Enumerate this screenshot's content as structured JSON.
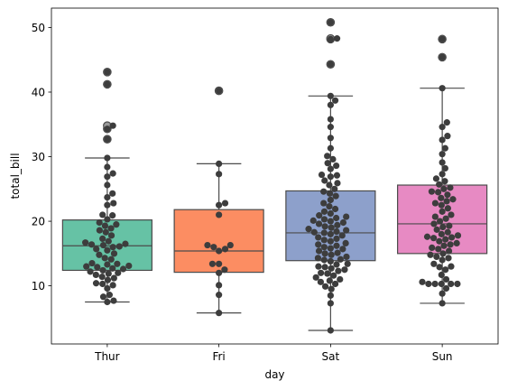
{
  "chart_data": {
    "type": "box",
    "overlay": "swarm",
    "title": "",
    "xlabel": "day",
    "ylabel": "total_bill",
    "ylim": [
      1.0,
      53.0
    ],
    "y_ticks": [
      10,
      20,
      30,
      40,
      50
    ],
    "grid": false,
    "legend": "none",
    "categories": [
      "Thur",
      "Fri",
      "Sat",
      "Sun"
    ],
    "colors": [
      "#66c2a5",
      "#fc8d62",
      "#8da0cb",
      "#e78ac3"
    ],
    "box_stats": [
      {
        "whisker_low": 7.5,
        "q1": 12.4,
        "median": 16.2,
        "q3": 20.2,
        "whisker_high": 29.8,
        "outliers": [
          32.7,
          34.3,
          34.8,
          41.2,
          43.1
        ]
      },
      {
        "whisker_low": 5.8,
        "q1": 12.1,
        "median": 15.4,
        "q3": 21.8,
        "whisker_high": 28.9,
        "outliers": [
          40.2
        ]
      },
      {
        "whisker_low": 3.1,
        "q1": 13.9,
        "median": 18.2,
        "q3": 24.7,
        "whisker_high": 39.4,
        "outliers": [
          44.3,
          48.2,
          48.3,
          50.8
        ]
      },
      {
        "whisker_low": 7.3,
        "q1": 15.0,
        "median": 19.6,
        "q3": 25.6,
        "whisker_high": 40.6,
        "outliers": [
          45.4,
          48.2
        ]
      }
    ],
    "points": [
      [
        7.5,
        7.7,
        8.3,
        8.6,
        9.6,
        10.1,
        10.3,
        10.4,
        10.9,
        11.2,
        11.4,
        11.7,
        11.9,
        12.0,
        12.2,
        12.4,
        12.6,
        12.7,
        12.9,
        13.0,
        13.1,
        13.3,
        13.4,
        13.5,
        14.1,
        14.3,
        14.8,
        15.0,
        15.5,
        15.7,
        16.0,
        16.1,
        16.3,
        16.4,
        16.5,
        16.7,
        16.9,
        17.3,
        17.8,
        18.3,
        18.6,
        18.9,
        19.3,
        19.5,
        19.8,
        20.3,
        20.9,
        21.0,
        22.5,
        22.8,
        23.7,
        24.3,
        25.6,
        26.9,
        27.4,
        28.4,
        29.8,
        32.7,
        34.3,
        34.8,
        41.2,
        43.1
      ],
      [
        5.8,
        8.6,
        10.1,
        12.0,
        12.5,
        13.4,
        13.4,
        15.4,
        15.7,
        16.0,
        16.3,
        16.3,
        21.0,
        22.5,
        22.8,
        27.3,
        28.9,
        40.2
      ],
      [
        3.1,
        7.3,
        8.5,
        9.5,
        9.9,
        10.3,
        10.6,
        10.8,
        11.0,
        11.3,
        11.6,
        11.9,
        12.0,
        12.3,
        12.5,
        12.7,
        12.9,
        13.0,
        13.3,
        13.4,
        13.8,
        14.0,
        14.1,
        14.3,
        14.5,
        14.8,
        15.0,
        15.1,
        15.4,
        15.7,
        15.8,
        16.0,
        16.2,
        16.4,
        16.6,
        16.9,
        17.1,
        17.3,
        17.5,
        17.8,
        18.0,
        18.2,
        18.3,
        18.4,
        18.6,
        18.8,
        19.0,
        19.2,
        19.4,
        19.6,
        19.8,
        20.0,
        20.1,
        20.3,
        20.5,
        20.7,
        20.9,
        21.2,
        21.5,
        21.9,
        22.3,
        22.8,
        23.3,
        23.9,
        24.3,
        24.6,
        25.0,
        25.6,
        25.9,
        26.3,
        26.9,
        27.1,
        27.2,
        28.1,
        28.6,
        29.0,
        29.6,
        30.1,
        31.3,
        32.9,
        34.6,
        35.8,
        38.0,
        38.7,
        39.4,
        44.3,
        48.2,
        48.3,
        50.8
      ],
      [
        7.3,
        8.8,
        9.6,
        10.3,
        10.3,
        10.3,
        10.3,
        10.3,
        10.6,
        11.0,
        11.7,
        12.5,
        12.9,
        13.0,
        13.4,
        14.0,
        14.3,
        14.5,
        14.8,
        15.0,
        15.4,
        15.7,
        15.9,
        16.2,
        16.4,
        16.6,
        16.9,
        17.2,
        17.4,
        17.5,
        17.6,
        17.8,
        18.0,
        18.3,
        18.7,
        19.1,
        19.3,
        19.6,
        20.0,
        20.4,
        20.7,
        21.0,
        21.5,
        22.0,
        22.5,
        22.8,
        23.1,
        23.4,
        23.6,
        24.1,
        24.5,
        24.6,
        25.0,
        25.2,
        25.7,
        26.2,
        26.6,
        27.3,
        28.2,
        29.1,
        30.4,
        31.3,
        32.6,
        33.2,
        34.6,
        35.3,
        40.6,
        45.4,
        48.2
      ]
    ]
  }
}
